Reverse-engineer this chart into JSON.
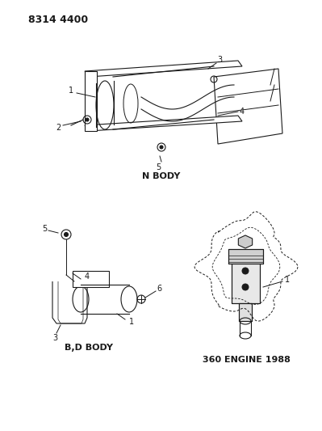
{
  "title_code": "8314 4400",
  "background_color": "#ffffff",
  "line_color": "#1a1a1a",
  "label_color": "#1a1a1a",
  "labels": {
    "n_body": "N BODY",
    "bd_body": "B,D BODY",
    "engine": "360 ENGINE 1988"
  },
  "figsize": [
    3.99,
    5.33
  ],
  "dpi": 100
}
